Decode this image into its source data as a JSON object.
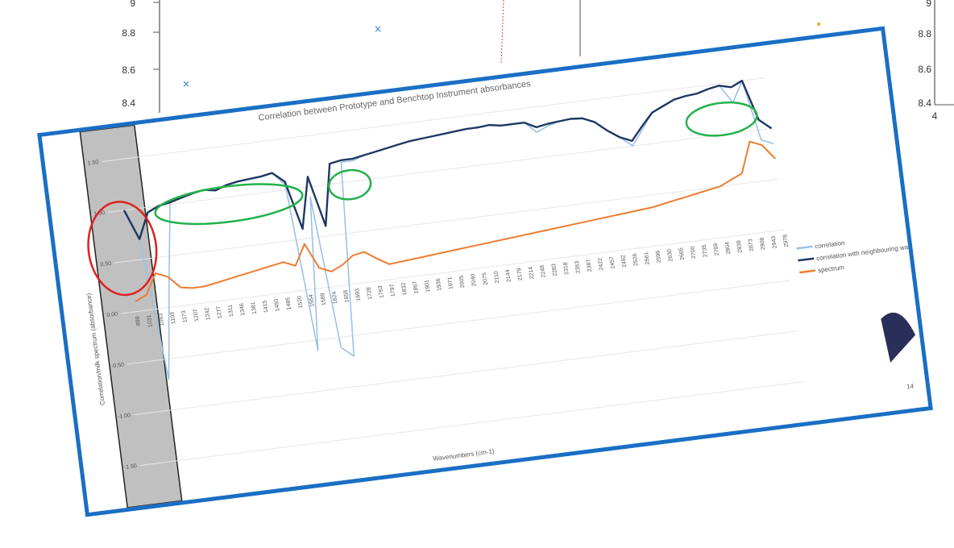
{
  "background": {
    "y_ticks": [
      "9",
      "8.8",
      "8.6",
      "8.4"
    ],
    "right_y_ticks": [
      "9",
      "8.8",
      "8.6",
      "8.4"
    ],
    "right_x_tick": "4",
    "markers": [
      {
        "symbol": "×",
        "color": "#2a7fd4"
      },
      {
        "symbol": "×",
        "color": "#2a7fd4"
      },
      {
        "symbol": "•",
        "color": "#f0a020"
      }
    ]
  },
  "slide": {
    "page_number": "14",
    "colors": {
      "border": "#1a6fc4",
      "shade": "#c0c0c0",
      "red_circle": "#e02020",
      "green_circle": "#22b24c",
      "logo": "#2a2f5a"
    }
  },
  "chart_data": {
    "type": "line",
    "title": "Correlation between Prototype and Benchtop Instrument absorbances",
    "xlabel": "Wavenumbers (cm-1)",
    "ylabel": "Correlation/milk spectrum (absorbance)",
    "ylim": [
      -1.5,
      1.5
    ],
    "yticks": [
      "1.50",
      "1.00",
      "0.50",
      "0.00",
      "-0.50",
      "-1.00",
      "-1.50"
    ],
    "categories": [
      "899",
      "1031",
      "1063",
      "1103",
      "1173",
      "1207",
      "1242",
      "1277",
      "1311",
      "1346",
      "1381",
      "1415",
      "1450",
      "1485",
      "1520",
      "1554",
      "1589",
      "1624",
      "1658",
      "1693",
      "1728",
      "1763",
      "1797",
      "1832",
      "1867",
      "1901",
      "1936",
      "1971",
      "2005",
      "2040",
      "2075",
      "2110",
      "2144",
      "2179",
      "2214",
      "2248",
      "2283",
      "2318",
      "2353",
      "2387",
      "2422",
      "2457",
      "2492",
      "2526",
      "2561",
      "2596",
      "2630",
      "2665",
      "2700",
      "2735",
      "2769",
      "2804",
      "2839",
      "2873",
      "2908",
      "2943",
      "2978"
    ],
    "grid": true,
    "legend_position": "right",
    "series": [
      {
        "name": "correlation",
        "color": "#9cc2e5",
        "values": [
          1.0,
          0.7,
          -0.7,
          0.2,
          1.02,
          1.05,
          1.08,
          1.1,
          1.08,
          1.12,
          1.14,
          1.15,
          1.16,
          1.18,
          1.05,
          -0.6,
          0.9,
          -0.6,
          -0.7,
          1.2,
          1.2,
          1.24,
          1.26,
          1.28,
          1.3,
          1.32,
          1.33,
          1.34,
          1.35,
          1.36,
          1.37,
          1.37,
          1.38,
          1.36,
          1.36,
          1.36,
          1.25,
          1.3,
          1.33,
          1.34,
          1.33,
          1.28,
          1.18,
          1.1,
          1.0,
          1.15,
          1.3,
          1.35,
          1.4,
          1.42,
          1.43,
          1.46,
          1.48,
          1.3,
          1.5,
          0.9,
          0.85
        ]
      },
      {
        "name": "correlation with neighbouring wavenumbers",
        "color": "#1f3864",
        "values": [
          1.0,
          0.7,
          0.95,
          1.0,
          1.02,
          1.05,
          1.08,
          1.1,
          1.08,
          1.12,
          1.14,
          1.15,
          1.16,
          1.18,
          1.08,
          0.6,
          1.1,
          0.6,
          1.2,
          1.22,
          1.22,
          1.24,
          1.26,
          1.28,
          1.3,
          1.32,
          1.33,
          1.34,
          1.35,
          1.36,
          1.37,
          1.37,
          1.38,
          1.36,
          1.36,
          1.36,
          1.3,
          1.32,
          1.33,
          1.34,
          1.33,
          1.28,
          1.18,
          1.1,
          1.05,
          1.18,
          1.3,
          1.35,
          1.4,
          1.42,
          1.43,
          1.46,
          1.48,
          1.45,
          1.5,
          1.1,
          1.0
        ]
      },
      {
        "name": "spectrum",
        "color": "#ed7d31",
        "values": [
          0.1,
          0.15,
          0.35,
          0.3,
          0.18,
          0.16,
          0.16,
          0.18,
          0.2,
          0.22,
          0.24,
          0.26,
          0.28,
          0.3,
          0.25,
          0.45,
          0.2,
          0.15,
          0.2,
          0.28,
          0.3,
          0.22,
          0.15,
          0.16,
          0.17,
          0.18,
          0.19,
          0.2,
          0.21,
          0.22,
          0.23,
          0.24,
          0.25,
          0.26,
          0.27,
          0.28,
          0.29,
          0.3,
          0.31,
          0.32,
          0.33,
          0.34,
          0.35,
          0.36,
          0.37,
          0.38,
          0.4,
          0.42,
          0.44,
          0.46,
          0.48,
          0.5,
          0.55,
          0.6,
          0.9,
          0.85,
          0.7
        ]
      }
    ]
  }
}
